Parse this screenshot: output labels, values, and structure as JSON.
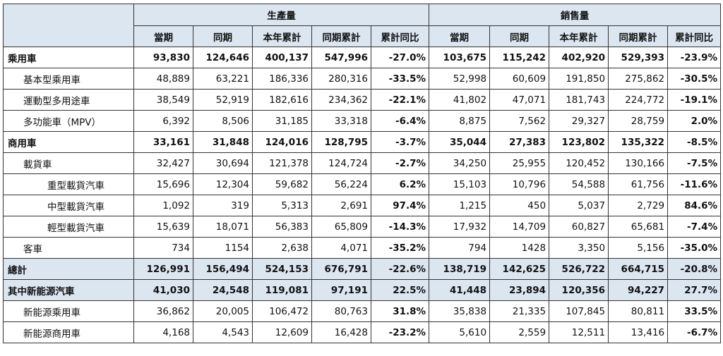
{
  "headers": {
    "production": "生產量",
    "sales": "銷售量",
    "columns": [
      "當期",
      "同期",
      "本年累計",
      "同期累計",
      "累計同比"
    ]
  },
  "rows": [
    {
      "label": "乘用車",
      "level": 0,
      "bold": true,
      "shaded": false,
      "values": [
        "93,830",
        "124,646",
        "400,137",
        "547,996",
        "-27.0%",
        "103,675",
        "115,242",
        "402,920",
        "529,393",
        "-23.9%"
      ]
    },
    {
      "label": "基本型乘用車",
      "level": 1,
      "bold": false,
      "shaded": false,
      "values": [
        "48,889",
        "63,221",
        "186,336",
        "280,316",
        "-33.5%",
        "52,998",
        "60,609",
        "191,850",
        "275,862",
        "-30.5%"
      ]
    },
    {
      "label": "運動型多用途車",
      "level": 1,
      "bold": false,
      "shaded": false,
      "values": [
        "38,549",
        "52,919",
        "182,616",
        "234,362",
        "-22.1%",
        "41,802",
        "47,071",
        "181,743",
        "224,772",
        "-19.1%"
      ]
    },
    {
      "label": "多功能車（MPV）",
      "level": 1,
      "bold": false,
      "shaded": false,
      "values": [
        "6,392",
        "8,506",
        "31,185",
        "33,318",
        "-6.4%",
        "8,875",
        "7,562",
        "29,327",
        "28,759",
        "2.0%"
      ]
    },
    {
      "label": "商用車",
      "level": 0,
      "bold": true,
      "shaded": false,
      "values": [
        "33,161",
        "31,848",
        "124,016",
        "128,795",
        "-3.7%",
        "35,044",
        "27,383",
        "123,802",
        "135,322",
        "-8.5%"
      ]
    },
    {
      "label": "載貨車",
      "level": 1,
      "bold": false,
      "shaded": false,
      "values": [
        "32,427",
        "30,694",
        "121,378",
        "124,724",
        "-2.7%",
        "34,250",
        "25,955",
        "120,452",
        "130,166",
        "-7.5%"
      ]
    },
    {
      "label": "重型載貨汽車",
      "level": 2,
      "bold": false,
      "shaded": false,
      "values": [
        "15,696",
        "12,304",
        "59,682",
        "56,224",
        "6.2%",
        "15,103",
        "10,796",
        "54,588",
        "61,756",
        "-11.6%"
      ]
    },
    {
      "label": "中型載貨汽車",
      "level": 2,
      "bold": false,
      "shaded": false,
      "values": [
        "1,092",
        "319",
        "5,313",
        "2,691",
        "97.4%",
        "1,215",
        "450",
        "5,037",
        "2,729",
        "84.6%"
      ]
    },
    {
      "label": "輕型載貨汽車",
      "level": 2,
      "bold": false,
      "shaded": false,
      "values": [
        "15,639",
        "18,071",
        "56,383",
        "65,809",
        "-14.3%",
        "17,932",
        "14,709",
        "60,827",
        "65,681",
        "-7.4%"
      ]
    },
    {
      "label": "客車",
      "level": 1,
      "bold": false,
      "shaded": false,
      "values": [
        "734",
        "1154",
        "2,638",
        "4,071",
        "-35.2%",
        "794",
        "1428",
        "3,350",
        "5,156",
        "-35.0%"
      ]
    },
    {
      "label": "總計",
      "level": 0,
      "bold": true,
      "shaded": true,
      "values": [
        "126,991",
        "156,494",
        "524,153",
        "676,791",
        "-22.6%",
        "138,719",
        "142,625",
        "526,722",
        "664,715",
        "-20.8%"
      ]
    },
    {
      "label": "其中新能源汽車",
      "level": 0,
      "bold": true,
      "shaded": true,
      "values": [
        "41,030",
        "24,548",
        "119,081",
        "97,191",
        "22.5%",
        "41,448",
        "23,894",
        "120,356",
        "94,227",
        "27.7%"
      ]
    },
    {
      "label": "新能源乘用車",
      "level": 1,
      "bold": false,
      "shaded": false,
      "values": [
        "36,862",
        "20,005",
        "106,472",
        "80,763",
        "31.8%",
        "35,838",
        "21,335",
        "107,845",
        "80,811",
        "33.5%"
      ]
    },
    {
      "label": "新能源商用車",
      "level": 1,
      "bold": false,
      "shaded": false,
      "values": [
        "4,168",
        "4,543",
        "12,609",
        "16,428",
        "-23.2%",
        "5,610",
        "2,559",
        "12,511",
        "13,416",
        "-6.7%"
      ]
    }
  ],
  "colors": {
    "header_bg": "#dce6f1",
    "border": "#333333",
    "text": "#111111"
  }
}
